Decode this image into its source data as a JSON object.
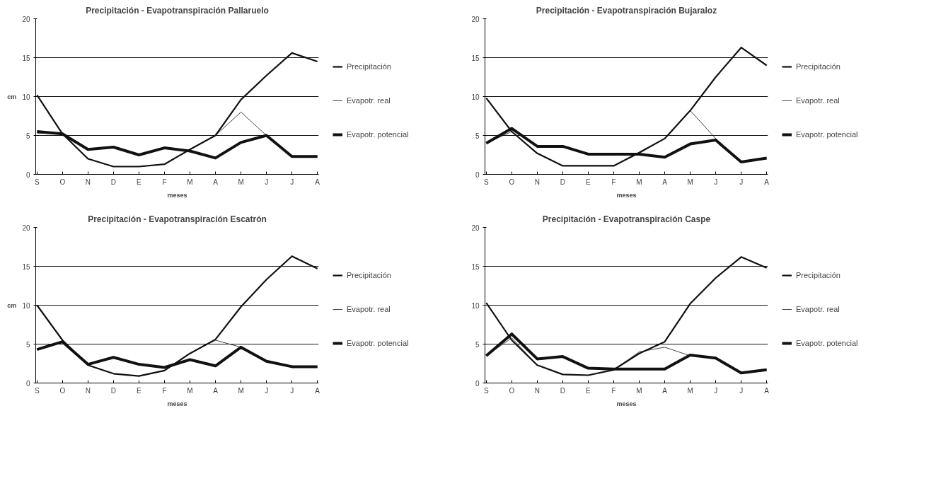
{
  "chart_data": [
    {
      "type": "line",
      "title": "Precipitación - Evapotranspiración Pallaruelo",
      "xlabel": "meses",
      "ylabel": "cm",
      "categories": [
        "S",
        "O",
        "N",
        "D",
        "E",
        "F",
        "M",
        "A",
        "M",
        "J",
        "J",
        "A"
      ],
      "ylim": [
        0,
        20
      ],
      "yticks": [
        0,
        5,
        10,
        15,
        20
      ],
      "grid": "y",
      "legend": "right",
      "marker": "none",
      "series": [
        {
          "name": "Precipitación",
          "color": "#111111",
          "values": [
            10.2,
            5.2,
            2,
            1,
            1,
            1.3,
            3.2,
            5,
            9.6,
            12.7,
            15.6,
            14.5
          ]
        },
        {
          "name": "Evapotr. real",
          "color": "#111111",
          "values": [
            5.3,
            5.2,
            2,
            1,
            1,
            1.3,
            3.2,
            5,
            8,
            5,
            2.3,
            2.3
          ]
        },
        {
          "name": "Evapotr. potencial",
          "color": "#111111",
          "values": [
            5.5,
            5.2,
            3.2,
            3.5,
            2.5,
            3.4,
            3,
            2.1,
            4.1,
            5,
            2.3,
            2.3
          ]
        }
      ]
    },
    {
      "type": "line",
      "title": "Precipitación - Evapotranspiración Bujaraloz",
      "xlabel": "meses",
      "categories": [
        "S",
        "O",
        "N",
        "D",
        "E",
        "F",
        "M",
        "A",
        "M",
        "J",
        "J",
        "A"
      ],
      "ylim": [
        0,
        20
      ],
      "yticks": [
        0,
        5,
        10,
        15,
        20
      ],
      "grid": "y",
      "legend": "right",
      "marker": "none",
      "series": [
        {
          "name": "Precipitación",
          "color": "#111111",
          "values": [
            9.8,
            5.5,
            2.7,
            1.1,
            1.1,
            1.1,
            2.8,
            4.6,
            8.2,
            12.5,
            16.3,
            14
          ]
        },
        {
          "name": "Evapotr. real",
          "color": "#111111",
          "values": [
            4,
            5.5,
            2.7,
            1.1,
            1.1,
            1.1,
            2.7,
            4.6,
            8.2,
            4.6,
            1.6,
            2.1
          ]
        },
        {
          "name": "Evapotr. potencial",
          "color": "#111111",
          "values": [
            4,
            5.9,
            3.6,
            3.6,
            2.6,
            2.6,
            2.6,
            2.2,
            3.9,
            4.4,
            1.6,
            2.1
          ]
        }
      ]
    },
    {
      "type": "line",
      "title": "Precipitación - Evapotranspiración Escatrón",
      "xlabel": "meses",
      "ylabel": "cm",
      "categories": [
        "S",
        "O",
        "N",
        "D",
        "E",
        "F",
        "M",
        "A",
        "M",
        "J",
        "J",
        "A"
      ],
      "ylim": [
        0,
        20
      ],
      "yticks": [
        0,
        5,
        10,
        15,
        20
      ],
      "grid": "y",
      "legend": "right",
      "marker": "none",
      "series": [
        {
          "name": "Precipitación",
          "color": "#111111",
          "values": [
            10,
            5.5,
            2.3,
            1.2,
            0.9,
            1.6,
            3.8,
            5.6,
            9.8,
            13.3,
            16.3,
            14.7
          ]
        },
        {
          "name": "Evapotr. real",
          "color": "#111111",
          "values": [
            4.3,
            5.3,
            2.3,
            1.2,
            0.9,
            1.6,
            3.8,
            5.5,
            4.6,
            2.8,
            2.1,
            2.1
          ]
        },
        {
          "name": "Evapotr. potencial",
          "color": "#111111",
          "values": [
            4.3,
            5.3,
            2.4,
            3.3,
            2.4,
            2,
            3,
            2.2,
            4.6,
            2.8,
            2.1,
            2.1
          ]
        }
      ]
    },
    {
      "type": "line",
      "title": "Precipitación - Evapotranspiración Caspe",
      "xlabel": "meses",
      "categories": [
        "S",
        "O",
        "N",
        "D",
        "E",
        "F",
        "M",
        "A",
        "M",
        "J",
        "J",
        "A"
      ],
      "ylim": [
        0,
        20
      ],
      "yticks": [
        0,
        5,
        10,
        15,
        20
      ],
      "grid": "y",
      "legend": "right",
      "marker": "none",
      "series": [
        {
          "name": "Precipitación",
          "color": "#111111",
          "values": [
            10.3,
            5.5,
            2.3,
            1.1,
            1,
            1.7,
            3.8,
            5.3,
            10.2,
            13.5,
            16.2,
            14.8
          ]
        },
        {
          "name": "Evapotr. real",
          "color": "#111111",
          "values": [
            3.5,
            5.8,
            2.3,
            1.1,
            1,
            1.7,
            4,
            4.6,
            3.5,
            3.2,
            1.3,
            1.7
          ]
        },
        {
          "name": "Evapotr. potencial",
          "color": "#111111",
          "values": [
            3.5,
            6.3,
            3.1,
            3.4,
            1.9,
            1.8,
            1.8,
            1.8,
            3.6,
            3.2,
            1.3,
            1.7
          ]
        }
      ]
    }
  ]
}
